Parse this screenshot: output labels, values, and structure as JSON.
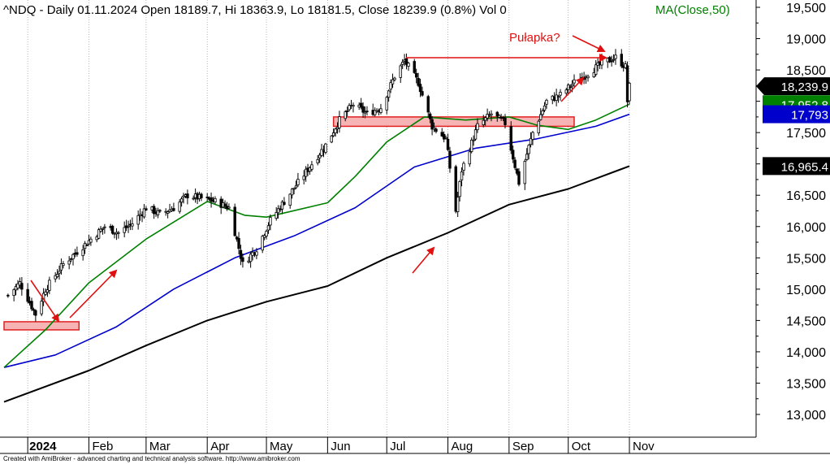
{
  "header": {
    "title": "^NDQ - Daily 01.11.2024 Open 18189.7, Hi 18363.9, Lo 18181.5, Close 18239.9 (0.8%) Vol 0",
    "indicator_label": "MA(Close,50)"
  },
  "footer": {
    "credit": "Created with AmiBroker - advanced charting and technical analysis software. http://www.amibroker.com"
  },
  "colors": {
    "candle_up": "#000000",
    "ma_fast": "#008000",
    "ma_mid": "#0000cc",
    "ma_slow": "#000000",
    "zone_fill": "#f4a7a7",
    "zone_stroke": "#e02020",
    "annotation": "#e01010",
    "last_close_badge": "#000000"
  },
  "chart_data": {
    "type": "candlestick",
    "y_axis": {
      "ticks": [
        13000,
        13500,
        14000,
        14500,
        15000,
        15500,
        16000,
        16500,
        17000,
        17500,
        18000,
        18500,
        19000,
        19500
      ],
      "tick_labels": [
        "13,000",
        "13,500",
        "14,000",
        "14,500",
        "15,000",
        "15,500",
        "16,000",
        "16,500",
        "17,000",
        "17,500",
        "18,000",
        "18,500",
        "19,000",
        "19,500"
      ],
      "ylim": [
        12600,
        19550
      ]
    },
    "x_axis": {
      "months": [
        "2024",
        "Feb",
        "Mar",
        "Apr",
        "May",
        "Jun",
        "Jul",
        "Aug",
        "Sep",
        "Oct",
        "Nov"
      ]
    },
    "last_values": {
      "close": {
        "label": "18,239.9",
        "value": 18239.9
      },
      "ma_fast": {
        "label": "17,952.8",
        "value": 17952.8
      },
      "ma_mid": {
        "label": "17,793",
        "value": 17793
      },
      "ma_slow": {
        "label": "16,965.4",
        "value": 16965.4
      }
    },
    "price_anchors": [
      [
        "2023-12-22",
        14900
      ],
      [
        "2023-12-28",
        15100
      ],
      [
        "2024-01-05",
        14600
      ],
      [
        "2024-01-10",
        15000
      ],
      [
        "2024-01-19",
        15400
      ],
      [
        "2024-01-26",
        15600
      ],
      [
        "2024-02-02",
        15800
      ],
      [
        "2024-02-09",
        16000
      ],
      [
        "2024-02-16",
        15900
      ],
      [
        "2024-02-23",
        16050
      ],
      [
        "2024-03-01",
        16300
      ],
      [
        "2024-03-08",
        16200
      ],
      [
        "2024-03-15",
        16300
      ],
      [
        "2024-03-22",
        16500
      ],
      [
        "2024-03-29",
        16450
      ],
      [
        "2024-04-05",
        16400
      ],
      [
        "2024-04-12",
        16300
      ],
      [
        "2024-04-19",
        15400
      ],
      [
        "2024-04-26",
        15650
      ],
      [
        "2024-05-03",
        16100
      ],
      [
        "2024-05-10",
        16400
      ],
      [
        "2024-05-17",
        16700
      ],
      [
        "2024-05-24",
        17000
      ],
      [
        "2024-05-31",
        17300
      ],
      [
        "2024-06-07",
        17700
      ],
      [
        "2024-06-14",
        17950
      ],
      [
        "2024-06-21",
        17800
      ],
      [
        "2024-06-28",
        17900
      ],
      [
        "2024-07-05",
        18400
      ],
      [
        "2024-07-10",
        18650
      ],
      [
        "2024-07-17",
        18300
      ],
      [
        "2024-07-24",
        17600
      ],
      [
        "2024-07-31",
        17400
      ],
      [
        "2024-08-05",
        16250
      ],
      [
        "2024-08-08",
        16900
      ],
      [
        "2024-08-16",
        17600
      ],
      [
        "2024-08-23",
        17800
      ],
      [
        "2024-08-30",
        17650
      ],
      [
        "2024-09-06",
        16700
      ],
      [
        "2024-09-13",
        17500
      ],
      [
        "2024-09-20",
        18000
      ],
      [
        "2024-09-27",
        18100
      ],
      [
        "2024-10-04",
        18300
      ],
      [
        "2024-10-11",
        18450
      ],
      [
        "2024-10-18",
        18600
      ],
      [
        "2024-10-25",
        18700
      ],
      [
        "2024-10-30",
        18550
      ],
      [
        "2024-10-31",
        18000
      ],
      [
        "2024-11-01",
        18240
      ]
    ],
    "ma_fast": [
      [
        "2023-12-20",
        13750
      ],
      [
        "2024-01-10",
        14350
      ],
      [
        "2024-02-01",
        15100
      ],
      [
        "2024-03-01",
        15800
      ],
      [
        "2024-04-01",
        16400
      ],
      [
        "2024-04-20",
        16180
      ],
      [
        "2024-05-01",
        16150
      ],
      [
        "2024-06-01",
        16380
      ],
      [
        "2024-06-15",
        16800
      ],
      [
        "2024-07-01",
        17350
      ],
      [
        "2024-07-20",
        17750
      ],
      [
        "2024-08-10",
        17700
      ],
      [
        "2024-09-01",
        17750
      ],
      [
        "2024-09-15",
        17620
      ],
      [
        "2024-10-01",
        17550
      ],
      [
        "2024-10-15",
        17700
      ],
      [
        "2024-11-01",
        17953
      ]
    ],
    "ma_mid": [
      [
        "2023-12-20",
        13750
      ],
      [
        "2024-01-15",
        13950
      ],
      [
        "2024-02-15",
        14400
      ],
      [
        "2024-03-15",
        15000
      ],
      [
        "2024-04-15",
        15500
      ],
      [
        "2024-05-15",
        15850
      ],
      [
        "2024-06-15",
        16300
      ],
      [
        "2024-07-15",
        16950
      ],
      [
        "2024-08-15",
        17250
      ],
      [
        "2024-09-15",
        17400
      ],
      [
        "2024-10-15",
        17600
      ],
      [
        "2024-11-01",
        17793
      ]
    ],
    "ma_slow": [
      [
        "2023-12-20",
        13200
      ],
      [
        "2024-02-01",
        13700
      ],
      [
        "2024-03-01",
        14100
      ],
      [
        "2024-04-01",
        14500
      ],
      [
        "2024-05-01",
        14800
      ],
      [
        "2024-06-01",
        15050
      ],
      [
        "2024-07-01",
        15500
      ],
      [
        "2024-08-01",
        15900
      ],
      [
        "2024-09-01",
        16350
      ],
      [
        "2024-10-01",
        16600
      ],
      [
        "2024-11-01",
        16965
      ]
    ],
    "zones": [
      {
        "x": [
          "2023-12-20",
          "2024-01-27"
        ],
        "y": [
          14350,
          14480
        ]
      },
      {
        "x": [
          "2024-06-04",
          "2024-10-04"
        ],
        "y": [
          17600,
          17750
        ]
      }
    ],
    "annotations": [
      {
        "text": "Pułapka?"
      }
    ]
  }
}
